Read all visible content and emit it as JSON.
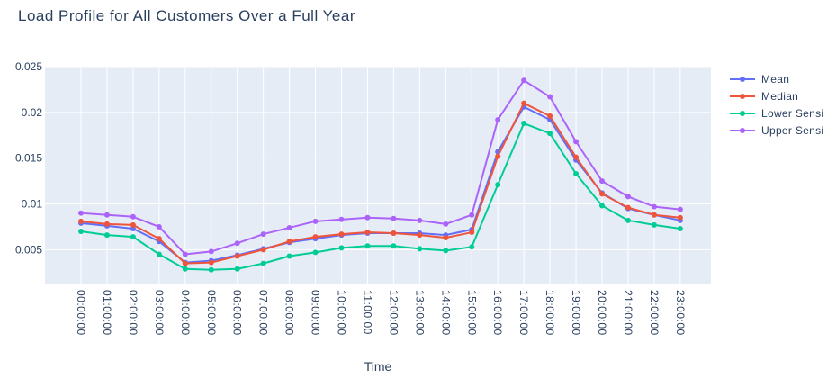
{
  "chart_data": {
    "type": "line",
    "title": "Load Profile for All Customers Over a Full Year",
    "xlabel": "Time",
    "ylabel": "",
    "categories": [
      "00:00:00",
      "01:00:00",
      "02:00:00",
      "03:00:00",
      "04:00:00",
      "05:00:00",
      "06:00:00",
      "07:00:00",
      "08:00:00",
      "09:00:00",
      "10:00:00",
      "11:00:00",
      "12:00:00",
      "13:00:00",
      "14:00:00",
      "15:00:00",
      "16:00:00",
      "17:00:00",
      "18:00:00",
      "19:00:00",
      "20:00:00",
      "21:00:00",
      "22:00:00",
      "23:00:00"
    ],
    "ylim": [
      0.0012,
      0.025
    ],
    "yticks": [
      0.005,
      0.01,
      0.015,
      0.02,
      0.025
    ],
    "ytick_labels": [
      "0.005",
      "0.01",
      "0.015",
      "0.02",
      "0.025"
    ],
    "grid": true,
    "legend_position": "right",
    "series": [
      {
        "name": "Mean",
        "color": "#636efa",
        "values": [
          0.0079,
          0.0076,
          0.0073,
          0.0059,
          0.0036,
          0.0038,
          0.0044,
          0.0051,
          0.0058,
          0.0062,
          0.0066,
          0.0068,
          0.0068,
          0.0068,
          0.0066,
          0.0072,
          0.0157,
          0.0206,
          0.0192,
          0.0148,
          0.0112,
          0.0095,
          0.0088,
          0.0082
        ]
      },
      {
        "name": "Median",
        "color": "#ef553b",
        "values": [
          0.0081,
          0.0078,
          0.0077,
          0.0062,
          0.0035,
          0.0036,
          0.0043,
          0.005,
          0.0059,
          0.0064,
          0.0067,
          0.0069,
          0.0068,
          0.0066,
          0.0063,
          0.0069,
          0.0152,
          0.021,
          0.0196,
          0.0151,
          0.0111,
          0.0096,
          0.0088,
          0.0085
        ]
      },
      {
        "name": "Lower Sensitivity",
        "legend_label": "Lower Sensi",
        "color": "#00cc96",
        "values": [
          0.007,
          0.0066,
          0.0064,
          0.0045,
          0.0029,
          0.0028,
          0.0029,
          0.0035,
          0.0043,
          0.0047,
          0.0052,
          0.0054,
          0.0054,
          0.0051,
          0.0049,
          0.0053,
          0.0121,
          0.0188,
          0.0177,
          0.0133,
          0.0098,
          0.0082,
          0.0077,
          0.0073
        ]
      },
      {
        "name": "Upper Sensitivity",
        "legend_label": "Upper Sensi",
        "color": "#ab63fa",
        "values": [
          0.009,
          0.0088,
          0.0086,
          0.0075,
          0.0045,
          0.0048,
          0.0057,
          0.0067,
          0.0074,
          0.0081,
          0.0083,
          0.0085,
          0.0084,
          0.0082,
          0.0078,
          0.0088,
          0.0192,
          0.0235,
          0.0217,
          0.0168,
          0.0125,
          0.0108,
          0.0097,
          0.0094
        ]
      }
    ]
  }
}
